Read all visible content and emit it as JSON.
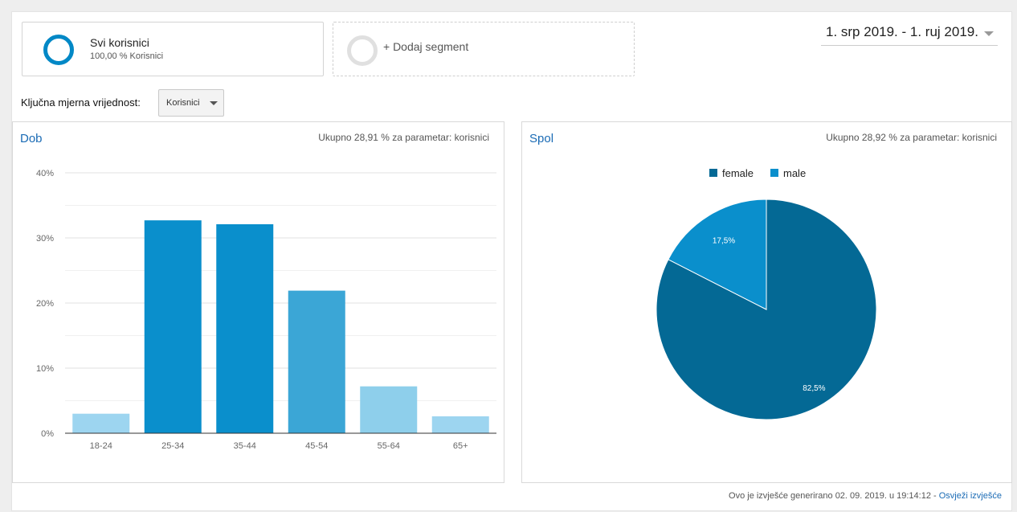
{
  "segments": {
    "all_users": {
      "name": "Svi korisnici",
      "sub": "100,00 % Korisnici"
    },
    "add_segment": "+ Dodaj segment"
  },
  "date_range": "1. srp 2019. - 1. ruj 2019.",
  "metric": {
    "label": "Ključna mjerna vrijednost:",
    "selected": "Korisnici"
  },
  "age_panel": {
    "title": "Dob",
    "note": "Ukupno 28,91 % za parametar: korisnici"
  },
  "gender_panel": {
    "title": "Spol",
    "note": "Ukupno 28,92 % za parametar: korisnici"
  },
  "footer": {
    "text": "Ovo je izvješće generirano 02. 09. 2019. u 19:14:12 - ",
    "link": "Osvježi izvješće"
  },
  "colors": {
    "accent": "#0288c6",
    "link": "#1a6bb5"
  },
  "chart_data": [
    {
      "type": "bar",
      "title": "Dob",
      "categories": [
        "18-24",
        "25-34",
        "35-44",
        "45-54",
        "55-64",
        "65+"
      ],
      "values": [
        3.0,
        32.7,
        32.1,
        21.9,
        7.2,
        2.6
      ],
      "bar_colors": [
        "#9dd5f0",
        "#0a8fcc",
        "#0a8fcc",
        "#3ba6d6",
        "#8ecfeb",
        "#9dd5f0"
      ],
      "yticks": [
        "0%",
        "10%",
        "20%",
        "30%",
        "40%"
      ],
      "ylim": [
        0,
        40
      ],
      "grid": true
    },
    {
      "type": "pie",
      "title": "Spol",
      "legend": [
        "female",
        "male"
      ],
      "legend_position": "top",
      "slices": [
        {
          "name": "female",
          "value": 82.5,
          "label": "82,5%",
          "color": "#046995"
        },
        {
          "name": "male",
          "value": 17.5,
          "label": "17,5%",
          "color": "#0a8fcc"
        }
      ]
    }
  ]
}
